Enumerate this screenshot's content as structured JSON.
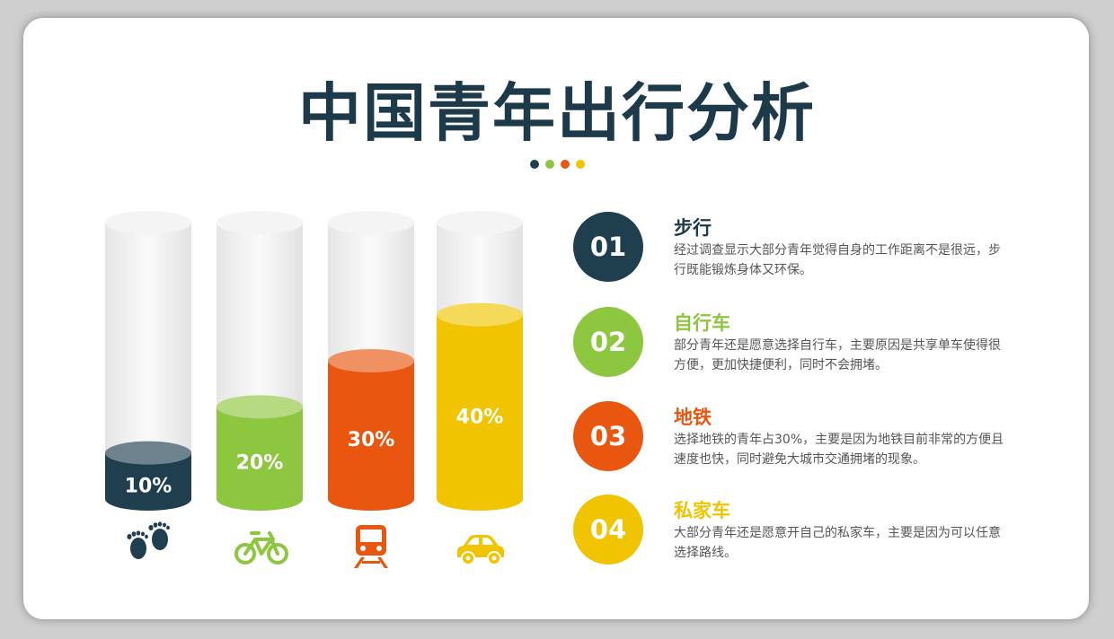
{
  "title": "中国青年出行分析",
  "colors": [
    "#1f3e4e",
    "#8dc63f",
    "#e8560f",
    "#f0c400"
  ],
  "chart_data": {
    "type": "bar",
    "categories": [
      "步行",
      "自行车",
      "地铁",
      "私家车"
    ],
    "values": [
      10,
      20,
      30,
      40
    ],
    "labels": [
      "10%",
      "20%",
      "30%",
      "40%"
    ],
    "icons": [
      "footprints-icon",
      "bicycle-icon",
      "train-icon",
      "car-icon"
    ]
  },
  "items": [
    {
      "num": "01",
      "title": "步行",
      "desc": "经过调查显示大部分青年觉得自身的工作距离不是很远，步行既能锻炼身体又环保。"
    },
    {
      "num": "02",
      "title": "自行车",
      "desc": "部分青年还是愿意选择自行车，主要原因是共享单车使得很方便，更加快捷便利，同时不会拥堵。"
    },
    {
      "num": "03",
      "title": "地铁",
      "desc": "选择地铁的青年占30%，主要是因为地铁目前非常的方便且速度也快，同时避免大城市交通拥堵的现象。"
    },
    {
      "num": "04",
      "title": "私家车",
      "desc": "大部分青年还是愿意开自己的私家车，主要是因为可以任意选择路线。"
    }
  ]
}
